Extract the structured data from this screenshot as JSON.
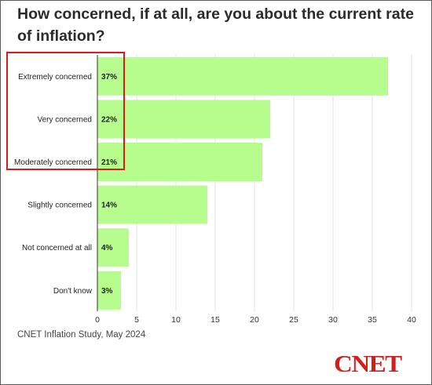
{
  "title": "How concerned, if at all, are you about the current rate of inflation?",
  "source": "CNET Inflation Study, May 2024",
  "logo": "CNET",
  "colors": {
    "bar": "#b6fd8d",
    "grid": "#e2e2e2",
    "highlight": "#e01818",
    "logo": "#d41e1e",
    "text": "#2b2b2b"
  },
  "chart_data": {
    "type": "bar",
    "orientation": "horizontal",
    "title": "How concerned, if at all, are you about the current rate of inflation?",
    "categories": [
      "Extremely concerned",
      "Very concerned",
      "Moderately concerned",
      "Slightly concerned",
      "Not concerned at all",
      "Don't know"
    ],
    "values": [
      37,
      22,
      21,
      14,
      4,
      3
    ],
    "value_labels": [
      "37%",
      "22%",
      "21%",
      "14%",
      "4%",
      "3%"
    ],
    "xlim": [
      0,
      40
    ],
    "xticks": [
      0,
      5,
      10,
      15,
      20,
      25,
      30,
      35,
      40
    ],
    "grid": "vertical",
    "highlighted_categories": [
      "Extremely concerned",
      "Very concerned",
      "Moderately concerned"
    ]
  }
}
